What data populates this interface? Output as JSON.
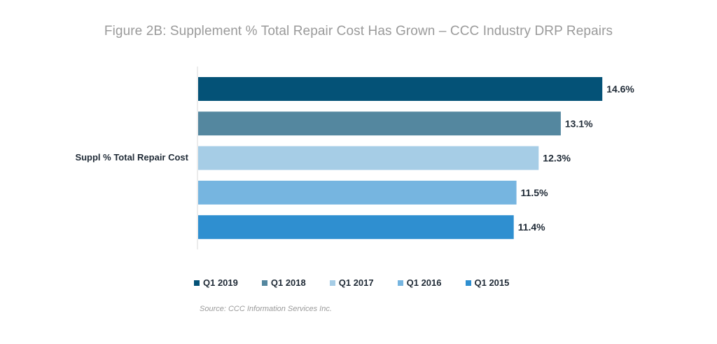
{
  "title": "Figure 2B: Supplement % Total Repair Cost Has Grown – CCC Industry DRP Repairs",
  "source": "Source: CCC Information Services Inc.",
  "chart_data": {
    "type": "bar",
    "orientation": "horizontal",
    "title": "Figure 2B: Supplement % Total Repair Cost Has Grown – CCC Industry DRP Repairs",
    "categories": [
      "Suppl % Total Repair Cost"
    ],
    "series": [
      {
        "name": "Q1 2019",
        "values": [
          14.6
        ],
        "label": "14.6%",
        "color": "#045277"
      },
      {
        "name": "Q1 2018",
        "values": [
          13.1
        ],
        "label": "13.1%",
        "color": "#54879f"
      },
      {
        "name": "Q1 2017",
        "values": [
          12.3
        ],
        "label": "12.3%",
        "color": "#a6cde6"
      },
      {
        "name": "Q1 2016",
        "values": [
          11.5
        ],
        "label": "11.5%",
        "color": "#76b5e0"
      },
      {
        "name": "Q1 2015",
        "values": [
          11.4
        ],
        "label": "11.4%",
        "color": "#2f8fd0"
      }
    ],
    "xlim": [
      0,
      15
    ],
    "grid": false,
    "legend_position": "bottom"
  }
}
